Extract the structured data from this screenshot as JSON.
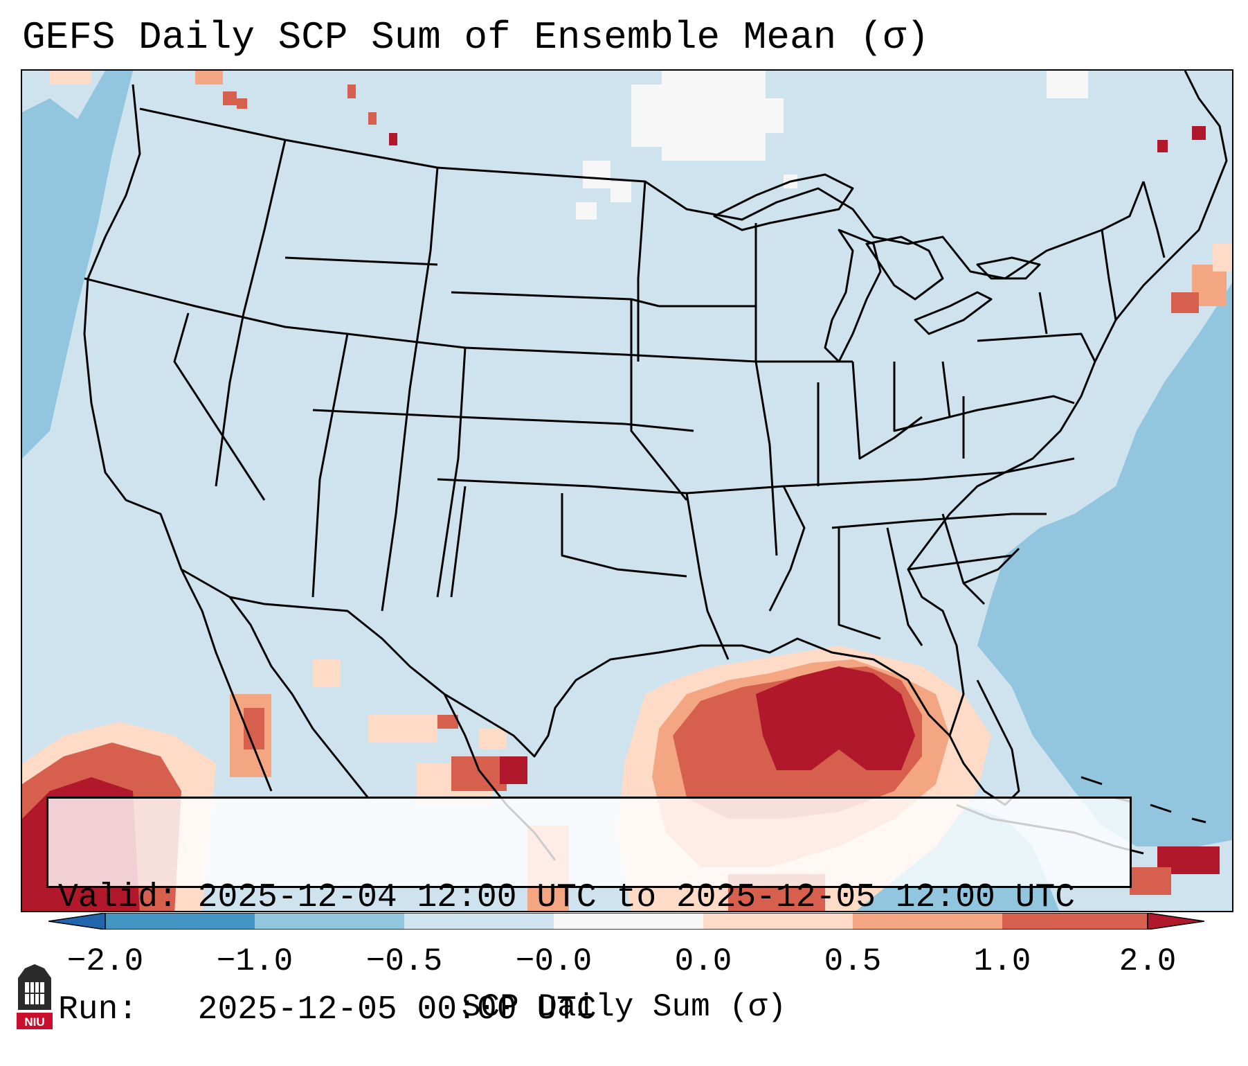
{
  "title": "GEFS Daily SCP Sum of Ensemble Mean (σ)",
  "info": {
    "valid_label": "Valid:",
    "valid_value": "2025-12-04 12:00 UTC to 2025-12-05 12:00 UTC",
    "run_label": "Run:",
    "run_value": "2025-12-05 00:00 UTC"
  },
  "colorbar": {
    "label": "SCP Daily Sum (σ)",
    "ticks": [
      "−2.0",
      "−1.0",
      "−0.5",
      "−0.0",
      "0.0",
      "0.5",
      "1.0",
      "2.0"
    ],
    "colors": {
      "below_min": "#2166ac",
      "bin_m2_m1": "#4393c3",
      "bin_m1_m05": "#92c5de",
      "bin_m05_0": "#d1e5f0",
      "bin_0_0": "#f7f7f7",
      "bin_0_05": "#fddbc7",
      "bin_05_1": "#f4a582",
      "bin_1_2": "#d6604d",
      "above_max": "#b2182b"
    }
  },
  "logo": {
    "name": "NIU"
  }
}
